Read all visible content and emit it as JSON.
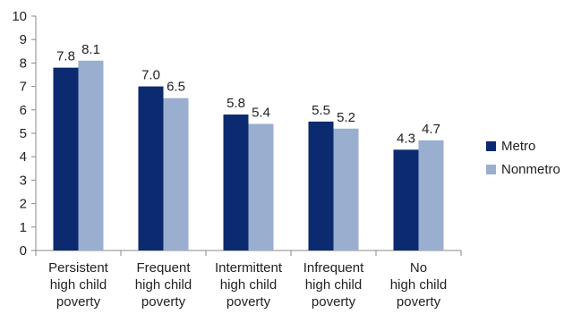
{
  "chart_data": {
    "type": "bar",
    "categories": [
      [
        "Persistent",
        "high child",
        "poverty"
      ],
      [
        "Frequent",
        "high child",
        "poverty"
      ],
      [
        "Intermittent",
        "high child",
        "poverty"
      ],
      [
        "Infrequent",
        "high child",
        "poverty"
      ],
      [
        "No",
        "high child",
        "poverty"
      ]
    ],
    "series": [
      {
        "name": "Metro",
        "color": "#0b2a6f",
        "values": [
          7.8,
          7.0,
          5.8,
          5.5,
          4.3
        ],
        "labels": [
          "7.8",
          "7.0",
          "5.8",
          "5.5",
          "4.3"
        ]
      },
      {
        "name": "Nonmetro",
        "color": "#9aaed0",
        "values": [
          8.1,
          6.5,
          5.4,
          5.2,
          4.7
        ],
        "labels": [
          "8.1",
          "6.5",
          "5.4",
          "5.2",
          "4.7"
        ]
      }
    ],
    "ylim": [
      0,
      10
    ],
    "yticks": [
      0,
      1,
      2,
      3,
      4,
      5,
      6,
      7,
      8,
      9,
      10
    ],
    "title": "",
    "xlabel": "",
    "ylabel": "",
    "grid": false,
    "legend_position": "right"
  }
}
